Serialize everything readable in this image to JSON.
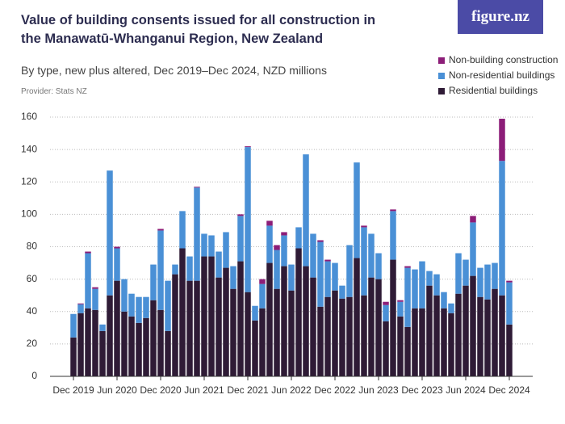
{
  "chart_data": {
    "type": "stacked-bar",
    "title": [
      "Value of building consents issued for all construction in",
      "the Manawatū-Whanganui Region, New Zealand"
    ],
    "subtitle": "By type, new plus altered, Dec 2019–Dec 2024, NZD millions",
    "provider": "Provider: Stats NZ",
    "logo": "figure.nz",
    "categories": [
      "Dec 2019",
      null,
      null,
      null,
      null,
      null,
      "Jun 2020",
      null,
      null,
      null,
      null,
      null,
      "Dec 2020",
      null,
      null,
      null,
      null,
      null,
      "Jun 2021",
      null,
      null,
      null,
      null,
      null,
      "Dec 2021",
      null,
      null,
      null,
      null,
      null,
      "Jun 2022",
      null,
      null,
      null,
      null,
      null,
      "Dec 2022",
      null,
      null,
      null,
      null,
      null,
      "Jun 2023",
      null,
      null,
      null,
      null,
      null,
      "Dec 2023",
      null,
      null,
      null,
      null,
      null,
      "Jun 2024",
      null,
      null,
      null,
      null,
      null,
      "Dec 2024"
    ],
    "series": [
      {
        "name": "Residential buildings",
        "color": "#2f1b36",
        "values": [
          24,
          39,
          42,
          41,
          28,
          50,
          59,
          40,
          37,
          33,
          36,
          47,
          41,
          28,
          63,
          79,
          59,
          59,
          74,
          74,
          61,
          67,
          54,
          71,
          52,
          34.5,
          42,
          70,
          54,
          68,
          53,
          79,
          68,
          61,
          43,
          49,
          53,
          48,
          49,
          73,
          50,
          61,
          60,
          34,
          72,
          37,
          30.5,
          42,
          42,
          56,
          50,
          42,
          39,
          51,
          56,
          62,
          49,
          47.5,
          54,
          50,
          32
        ]
      },
      {
        "name": "Non-residential buildings",
        "color": "#4a90d6",
        "values": [
          14.5,
          5.5,
          34,
          13,
          4,
          77,
          20,
          20,
          14,
          16,
          13,
          22,
          49,
          31,
          6,
          23,
          15,
          57.5,
          14,
          13,
          16,
          22,
          14,
          28,
          89.5,
          9,
          15,
          23,
          24,
          19,
          16,
          13,
          69,
          27,
          40,
          22,
          17,
          8,
          32,
          59,
          42,
          27,
          16,
          10,
          30,
          9,
          36.5,
          24,
          29,
          9,
          13,
          10,
          6,
          25,
          16,
          33,
          18,
          21.5,
          16,
          83,
          26
        ]
      },
      {
        "name": "Non-building construction",
        "color": "#8c1d78",
        "values": [
          0,
          0.5,
          1,
          1,
          0,
          0,
          1,
          0,
          0,
          0,
          0,
          0,
          1,
          0,
          0,
          0,
          0,
          0.5,
          0,
          0,
          0,
          0,
          0,
          1,
          0.5,
          0,
          3,
          3,
          3,
          2,
          0,
          0,
          0,
          0,
          1,
          1,
          0,
          0,
          0,
          0,
          1,
          0,
          0,
          2,
          1,
          1,
          1,
          0,
          0,
          0,
          0,
          0,
          0,
          0,
          0,
          4,
          0,
          0,
          0,
          26,
          1
        ]
      }
    ],
    "ylim": [
      0,
      160
    ],
    "yticks": [
      0,
      20,
      40,
      60,
      80,
      100,
      120,
      140,
      160
    ],
    "grid": true
  }
}
